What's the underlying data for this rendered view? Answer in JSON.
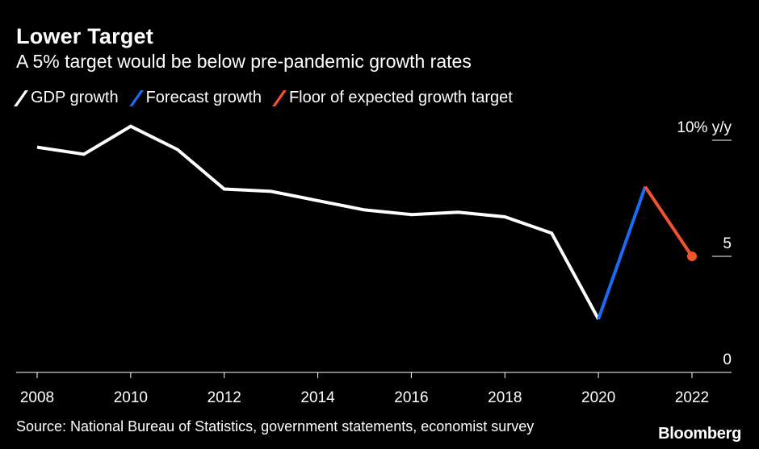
{
  "header": {
    "title": "Lower Target",
    "subtitle": "A 5% target would be below pre-pandemic growth rates"
  },
  "footer": {
    "source": "Source: National Bureau of Statistics, government statements, economist survey",
    "brand": "Bloomberg"
  },
  "colors": {
    "gdp": "#ffffff",
    "forecast": "#1a6cf5",
    "floor": "#f0532d",
    "background": "#000000"
  },
  "chart_data": {
    "type": "line",
    "title": "Lower Target",
    "subtitle": "A 5% target would be below pre-pandemic growth rates",
    "xlabel": "",
    "ylabel": "",
    "y_unit_label": "10% y/y",
    "ylim": [
      0,
      10
    ],
    "xlim": [
      2008,
      2022
    ],
    "x_ticks": [
      "2008",
      "2010",
      "2012",
      "2014",
      "2016",
      "2018",
      "2020",
      "2022"
    ],
    "y_ticks": [
      "0",
      "5",
      "10% y/y"
    ],
    "legend": [
      "GDP growth",
      "Forecast growth",
      "Floor of expected growth target"
    ],
    "legend_position": "top-left",
    "series": [
      {
        "name": "GDP growth",
        "x": [
          2008,
          2009,
          2010,
          2011,
          2012,
          2013,
          2014,
          2015,
          2016,
          2017,
          2018,
          2019,
          2020
        ],
        "values": [
          9.7,
          9.4,
          10.6,
          9.6,
          7.9,
          7.8,
          7.4,
          7.0,
          6.8,
          6.9,
          6.7,
          6.0,
          2.3
        ]
      },
      {
        "name": "Forecast growth",
        "x": [
          2020,
          2021
        ],
        "values": [
          2.3,
          8.0
        ]
      },
      {
        "name": "Floor of expected growth target",
        "x": [
          2021,
          2022
        ],
        "values": [
          8.0,
          5.0
        ]
      }
    ]
  }
}
